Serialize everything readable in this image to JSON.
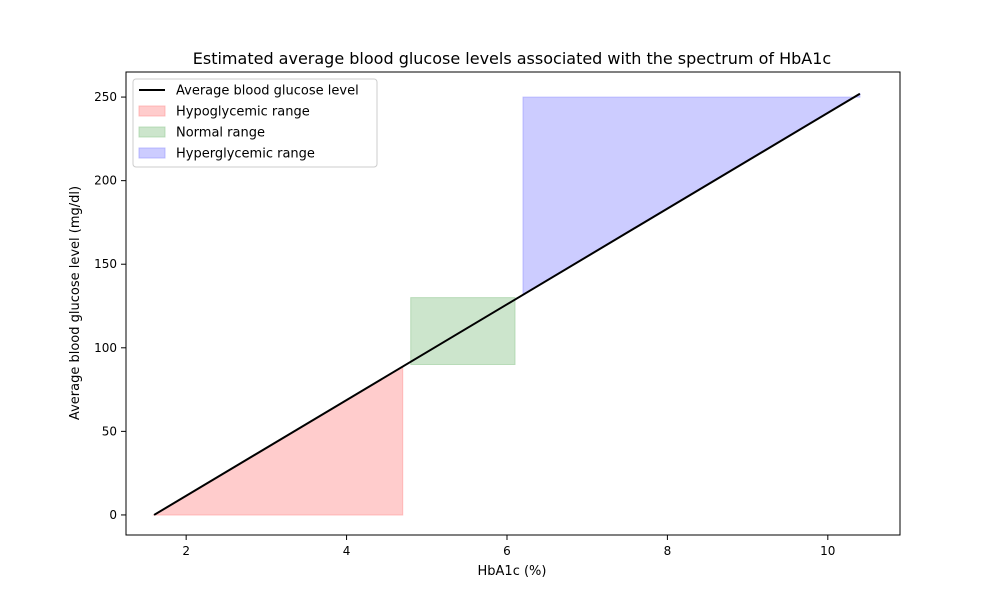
{
  "chart_data": {
    "type": "area",
    "title": "Estimated average blood glucose levels associated with the spectrum of HbA1c",
    "xlabel": "HbA1c (%)",
    "ylabel": "Average blood glucose level (mg/dl)",
    "xlim": [
      1.25,
      10.9
    ],
    "ylim": [
      -12,
      265
    ],
    "xticks": [
      2,
      4,
      6,
      8,
      10
    ],
    "yticks": [
      0,
      50,
      100,
      150,
      200,
      250
    ],
    "grid": false,
    "legend_position": "upper-left",
    "line": {
      "name": "Average blood glucose level",
      "color": "#000000",
      "x": [
        1.6,
        10.4
      ],
      "y": [
        0,
        252
      ]
    },
    "ranges": [
      {
        "name": "Hypoglycemic range",
        "color": "#ff9999",
        "x_start": 1.6,
        "x_end": 4.7,
        "y_top": "line",
        "y_bottom": 0
      },
      {
        "name": "Normal range",
        "color": "#99cc99",
        "x_start": 4.8,
        "x_end": 6.1,
        "y_top": 130,
        "y_bottom": 90
      },
      {
        "name": "Hyperglycemic range",
        "color": "#9999ff",
        "x_start": 6.2,
        "x_end": 10.4,
        "y_top": 250,
        "y_bottom": "line"
      }
    ]
  }
}
